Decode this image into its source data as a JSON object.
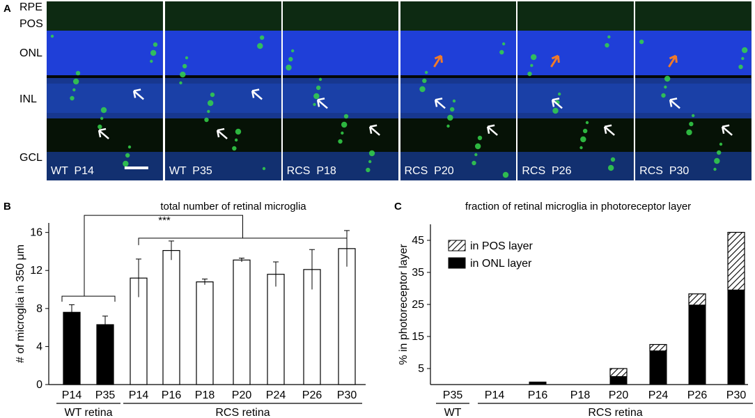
{
  "panel_a": {
    "letter": "A",
    "layers": [
      "RPE",
      "POS",
      "ONL",
      "INL",
      "GCL"
    ],
    "images": [
      {
        "caption": "WT  P14",
        "has_scalebar": true
      },
      {
        "caption": "WT  P35"
      },
      {
        "caption": "RCS  P18"
      },
      {
        "caption": "RCS  P20"
      },
      {
        "caption": "RCS  P26"
      },
      {
        "caption": "RCS  P30"
      }
    ],
    "colors": {
      "nuclei": "#1f3fd8",
      "microglia": "#35d44a",
      "white_arrow": "#ffffff",
      "orange_arrow": "#f07a2a"
    }
  },
  "panel_b": {
    "letter": "B"
  },
  "panel_c": {
    "letter": "C"
  },
  "chart_data": [
    {
      "type": "bar",
      "title": "total number of retinal microglia",
      "ylabel": "# of microglia in 350 μm",
      "ylim": [
        0,
        17
      ],
      "yticks": [
        0,
        4,
        8,
        12,
        16
      ],
      "categories": [
        "P14",
        "P35",
        "P14",
        "P16",
        "P18",
        "P20",
        "P24",
        "P26",
        "P30"
      ],
      "groups": [
        {
          "name": "WT retina",
          "categories": [
            "P14",
            "P35"
          ]
        },
        {
          "name": "RCS retina",
          "categories": [
            "P14",
            "P16",
            "P18",
            "P20",
            "P24",
            "P26",
            "P30"
          ]
        }
      ],
      "series": [
        {
          "name": "WT retina",
          "fill": "#000000",
          "values": [
            7.6,
            6.3,
            null,
            null,
            null,
            null,
            null,
            null,
            null
          ],
          "errors": [
            0.8,
            0.9,
            null,
            null,
            null,
            null,
            null,
            null,
            null
          ]
        },
        {
          "name": "RCS retina",
          "fill": "#ffffff",
          "values": [
            null,
            null,
            11.2,
            14.1,
            10.8,
            13.1,
            11.6,
            12.1,
            14.3
          ],
          "errors": [
            null,
            null,
            2.0,
            1.0,
            0.3,
            0.2,
            1.3,
            2.1,
            1.9
          ]
        }
      ],
      "significance": "***",
      "grid": false,
      "legend": "none"
    },
    {
      "type": "bar",
      "stacked": true,
      "title": "fraction of retinal microglia in photoreceptor layer",
      "ylabel": "% in photoreceptor layer",
      "ylim": [
        0,
        50
      ],
      "yticks": [
        5,
        15,
        25,
        35,
        45
      ],
      "categories": [
        "P35",
        "P14",
        "P16",
        "P18",
        "P20",
        "P24",
        "P26",
        "P30"
      ],
      "groups": [
        {
          "name": "WT",
          "categories": [
            "P35"
          ]
        },
        {
          "name": "RCS retina",
          "categories": [
            "P14",
            "P16",
            "P18",
            "P20",
            "P24",
            "P26",
            "P30"
          ]
        }
      ],
      "series": [
        {
          "name": "in ONL layer",
          "pattern": "solid-black",
          "values": [
            0,
            0,
            0.8,
            0,
            2.5,
            10.5,
            24.8,
            29.5
          ]
        },
        {
          "name": "in POS layer",
          "pattern": "hatched",
          "values": [
            0,
            0,
            0,
            0,
            2.5,
            2.0,
            3.5,
            18.0
          ]
        }
      ],
      "grid": false,
      "legend": "top-left"
    }
  ]
}
